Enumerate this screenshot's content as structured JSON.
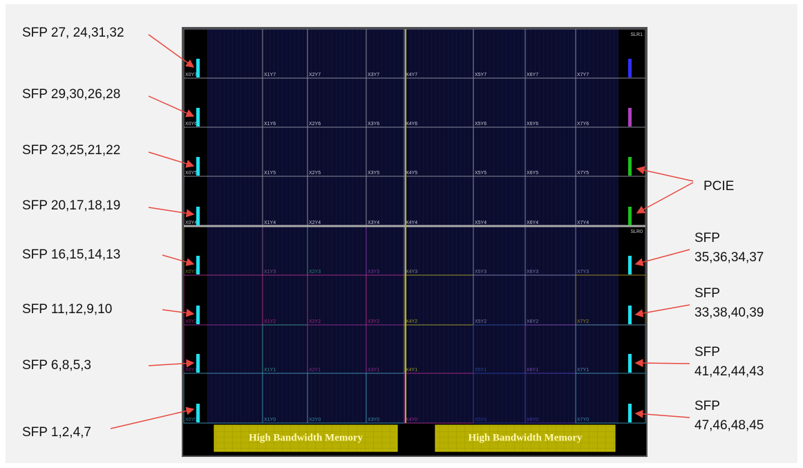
{
  "left_labels": [
    "SFP 27, 24,31,32",
    "SFP 29,30,26,28",
    "SFP 23,25,21,22",
    "SFP 20,17,18,19",
    "SFP 16,15,14,13",
    "SFP 11,12,9,10",
    "SFP 6,8,5,3",
    "SFP 1,2,4,7"
  ],
  "pcie_label": "PCIE",
  "right_labels": [
    {
      "title": "SFP",
      "ports": "35,36,34,37"
    },
    {
      "title": "SFP",
      "ports": "33,38,40,39"
    },
    {
      "title": "SFP",
      "ports": "41,42,44,43"
    },
    {
      "title": "SFP",
      "ports": "47,46,48,45"
    }
  ],
  "slr_labels": [
    "SLR1",
    "SLR0"
  ],
  "regions": [
    [
      "X0Y7",
      "X1Y7",
      "X2Y7",
      "X3Y7",
      "X4Y7",
      "X5Y7",
      "X6Y7",
      "X7Y7"
    ],
    [
      "X0Y6",
      "X1Y6",
      "X2Y6",
      "X3Y6",
      "X4Y6",
      "X5Y6",
      "X6Y6",
      "X7Y6"
    ],
    [
      "X0Y5",
      "X1Y5",
      "X2Y5",
      "X3Y5",
      "X4Y5",
      "X5Y5",
      "X6Y5",
      "X7Y5"
    ],
    [
      "X0Y4",
      "X1Y4",
      "X2Y4",
      "X3Y4",
      "X4Y4",
      "X5Y4",
      "X6Y4",
      "X7Y4"
    ],
    [
      "X0Y3",
      "X1Y3",
      "X2Y3",
      "X3Y3",
      "X4Y3",
      "X5Y3",
      "X6Y3",
      "X7Y3"
    ],
    [
      "X0Y2",
      "X1Y2",
      "X2Y2",
      "X3Y2",
      "X4Y2",
      "X5Y2",
      "X6Y2",
      "X7Y2"
    ],
    [
      "X0Y1",
      "X1Y1",
      "X2Y1",
      "X3Y1",
      "X4Y1",
      "X5Y1",
      "X6Y1",
      "X7Y1"
    ],
    [
      "X0Y0",
      "X1Y0",
      "X2Y0",
      "X3Y0",
      "X4Y0",
      "X5Y0",
      "X6Y0",
      "X7Y0"
    ]
  ],
  "hbm_labels": [
    "High Bandwidth Memory",
    "High Bandwidth Memory"
  ]
}
